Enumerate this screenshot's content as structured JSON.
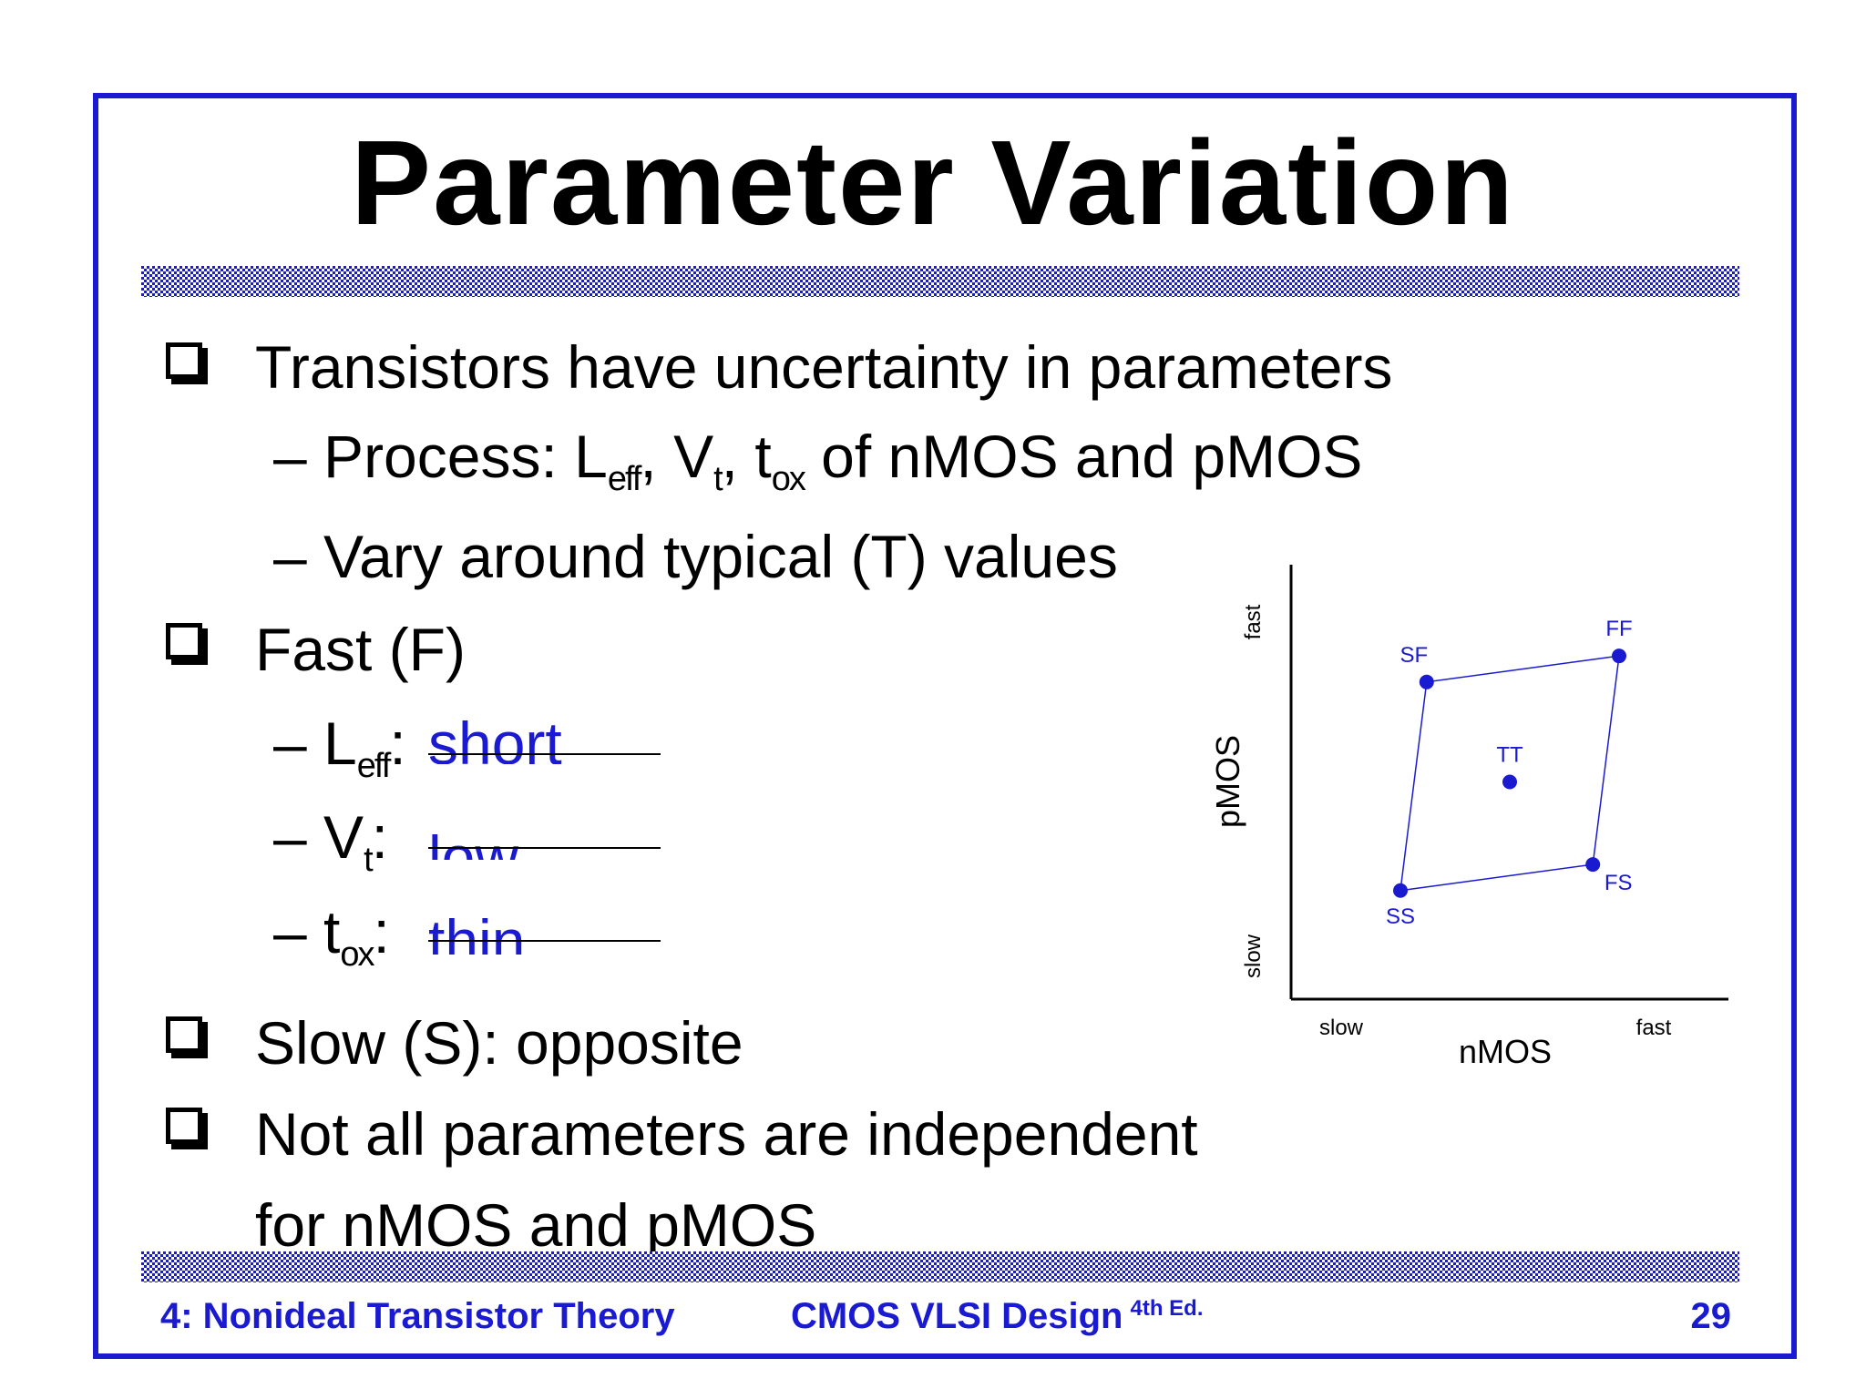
{
  "title": "Parameter Variation",
  "bullets": {
    "b1": "Transistors have uncertainty in parameters",
    "b1_sub1": {
      "prefix": "– Process: L",
      "leff_sub": "eff",
      "v_main": ", V",
      "vt_sub": "t",
      "t_main": ", t",
      "tox_sub": "ox",
      "suffix": " of nMOS and pMOS"
    },
    "b1_sub2": "– Vary around typical (T) values",
    "b2": "Fast (F)",
    "b2_sub1": {
      "prefix": "– L",
      "sub": "eff",
      "colon": ":",
      "value": "short"
    },
    "b2_sub2": {
      "prefix": "– V",
      "sub": "t",
      "colon": ":",
      "value": "low"
    },
    "b2_sub3": {
      "prefix": "– t",
      "sub": "ox",
      "colon": ":",
      "value": "thin"
    },
    "b3": "Slow (S): opposite",
    "b4_line1": "Not all parameters are independent",
    "b4_line2": "for nMOS and pMOS"
  },
  "footer": {
    "left": "4: Nonideal Transistor Theory",
    "center": "CMOS VLSI Design",
    "edition": "4th Ed.",
    "page": "29"
  },
  "colors": {
    "accent": "#1a1ad0",
    "text": "#000000"
  },
  "chart_data": {
    "type": "scatter",
    "xlabel": "nMOS",
    "ylabel": "pMOS",
    "x_ticks": [
      "slow",
      "fast"
    ],
    "y_ticks": [
      "slow",
      "fast"
    ],
    "xlim": [
      0,
      10
    ],
    "ylim": [
      0,
      10
    ],
    "points": [
      {
        "label": "SS",
        "x": 2.5,
        "y": 2.5
      },
      {
        "label": "FS",
        "x": 6.9,
        "y": 3.1
      },
      {
        "label": "FF",
        "x": 7.5,
        "y": 7.9
      },
      {
        "label": "SF",
        "x": 3.1,
        "y": 7.3
      },
      {
        "label": "TT",
        "x": 5.0,
        "y": 5.0
      }
    ],
    "polygon": [
      "SS",
      "FS",
      "FF",
      "SF"
    ]
  }
}
